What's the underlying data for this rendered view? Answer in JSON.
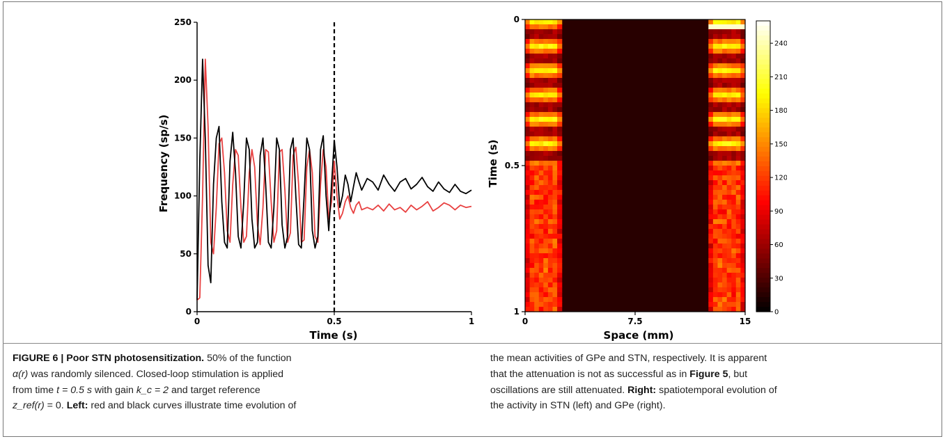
{
  "figure": {
    "label": "FIGURE 6 | Poor STN photosensitization.",
    "caption_left_line1_rest": "50% of the function",
    "caption_left_line2": "was randomly silenced. Closed-loop stimulation is applied",
    "caption_left_line3": "from time",
    "caption_left_t": "t = 0.5 s",
    "caption_left_with_gain": "with gain",
    "caption_left_kc": "k_c = 2",
    "caption_left_and_target": "and target reference",
    "caption_left_zref_eq": "= 0.",
    "caption_left_bold": "Left:",
    "caption_left_line4_rest": "red and black curves illustrate time evolution of",
    "caption_right_line1": "the mean activities of GPe and STN, respectively. It is apparent",
    "caption_right_line2a": "that the attenuation is not as successful as in",
    "caption_right_fig5": "Figure 5",
    "caption_right_line2b": ", but",
    "caption_right_line3a": "oscillations are still attenuated.",
    "caption_right_bold": "Right:",
    "caption_right_line3b": "spatiotemporal evolution of",
    "caption_right_line4": "the activity in STN (left) and GPe (right).",
    "alpha_symbol": "α(r)",
    "zref_symbol": "z_ref(r)"
  },
  "chart_data": [
    {
      "type": "line",
      "xlabel": "Time (s)",
      "ylabel": "Frequency (sp/s)",
      "xlim": [
        0,
        1
      ],
      "ylim": [
        0,
        250
      ],
      "xticks": [
        "0",
        "0.5",
        "1"
      ],
      "yticks": [
        "0",
        "50",
        "100",
        "150",
        "200",
        "250"
      ],
      "annotation": "dashed vertical line at t = 0.5 s",
      "series": [
        {
          "color": "#000000",
          "x": [
            0,
            0.01,
            0.02,
            0.03,
            0.04,
            0.05,
            0.06,
            0.07,
            0.08,
            0.09,
            0.1,
            0.11,
            0.12,
            0.13,
            0.14,
            0.15,
            0.16,
            0.17,
            0.18,
            0.19,
            0.2,
            0.21,
            0.22,
            0.23,
            0.24,
            0.25,
            0.26,
            0.27,
            0.28,
            0.29,
            0.3,
            0.31,
            0.32,
            0.33,
            0.34,
            0.35,
            0.36,
            0.37,
            0.38,
            0.39,
            0.4,
            0.41,
            0.42,
            0.43,
            0.44,
            0.45,
            0.46,
            0.47,
            0.48,
            0.49,
            0.5,
            0.51,
            0.52,
            0.53,
            0.54,
            0.55,
            0.56,
            0.57,
            0.58,
            0.59,
            0.6,
            0.62,
            0.64,
            0.66,
            0.68,
            0.7,
            0.72,
            0.74,
            0.76,
            0.78,
            0.8,
            0.82,
            0.84,
            0.86,
            0.88,
            0.9,
            0.92,
            0.94,
            0.96,
            0.98,
            1.0
          ],
          "y": [
            10,
            130,
            218,
            150,
            40,
            25,
            110,
            150,
            160,
            95,
            60,
            55,
            130,
            155,
            120,
            65,
            55,
            95,
            150,
            140,
            80,
            55,
            60,
            135,
            150,
            110,
            60,
            55,
            90,
            150,
            140,
            75,
            55,
            65,
            140,
            150,
            100,
            58,
            55,
            100,
            150,
            140,
            70,
            55,
            65,
            140,
            152,
            100,
            70,
            110,
            148,
            125,
            90,
            100,
            118,
            110,
            95,
            108,
            120,
            112,
            105,
            115,
            112,
            105,
            118,
            110,
            104,
            112,
            115,
            106,
            110,
            116,
            108,
            104,
            112,
            106,
            103,
            110,
            104,
            102,
            105
          ]
        },
        {
          "color": "#e84040",
          "x": [
            0,
            0.01,
            0.02,
            0.03,
            0.04,
            0.05,
            0.06,
            0.07,
            0.08,
            0.09,
            0.1,
            0.11,
            0.12,
            0.13,
            0.14,
            0.15,
            0.16,
            0.17,
            0.18,
            0.19,
            0.2,
            0.21,
            0.22,
            0.23,
            0.24,
            0.25,
            0.26,
            0.27,
            0.28,
            0.29,
            0.3,
            0.31,
            0.32,
            0.33,
            0.34,
            0.35,
            0.36,
            0.37,
            0.38,
            0.39,
            0.4,
            0.41,
            0.42,
            0.43,
            0.44,
            0.45,
            0.46,
            0.47,
            0.48,
            0.49,
            0.5,
            0.51,
            0.52,
            0.53,
            0.54,
            0.55,
            0.56,
            0.57,
            0.58,
            0.59,
            0.6,
            0.62,
            0.64,
            0.66,
            0.68,
            0.7,
            0.72,
            0.74,
            0.76,
            0.78,
            0.8,
            0.82,
            0.84,
            0.86,
            0.88,
            0.9,
            0.92,
            0.94,
            0.96,
            0.98,
            1.0
          ],
          "y": [
            10,
            12,
            100,
            218,
            160,
            60,
            50,
            90,
            145,
            150,
            120,
            70,
            60,
            110,
            140,
            135,
            90,
            60,
            65,
            120,
            140,
            125,
            75,
            58,
            90,
            140,
            138,
            95,
            60,
            70,
            138,
            140,
            105,
            60,
            68,
            135,
            142,
            110,
            60,
            62,
            125,
            140,
            120,
            65,
            60,
            110,
            140,
            125,
            80,
            95,
            130,
            100,
            80,
            85,
            95,
            100,
            90,
            85,
            92,
            95,
            88,
            90,
            88,
            92,
            87,
            93,
            88,
            90,
            86,
            92,
            88,
            91,
            95,
            87,
            90,
            94,
            92,
            88,
            92,
            90,
            91
          ]
        }
      ]
    },
    {
      "type": "heatmap",
      "xlabel": "Space (mm)",
      "ylabel": "Time (s)",
      "xlim": [
        0,
        15
      ],
      "ylim": [
        0,
        1
      ],
      "xticks": [
        "0",
        "7.5",
        "15"
      ],
      "yticks": [
        "0",
        "0.5",
        "1"
      ],
      "colorbar": {
        "min": 0,
        "max": 260,
        "ticks": [
          "0",
          "30",
          "60",
          "90",
          "120",
          "150",
          "180",
          "210",
          "240"
        ],
        "colormap": "hot"
      },
      "bands": [
        {
          "name": "STN",
          "space": [
            0,
            2.5
          ]
        },
        {
          "name": "GPe",
          "space": [
            12.5,
            15
          ]
        }
      ]
    }
  ]
}
